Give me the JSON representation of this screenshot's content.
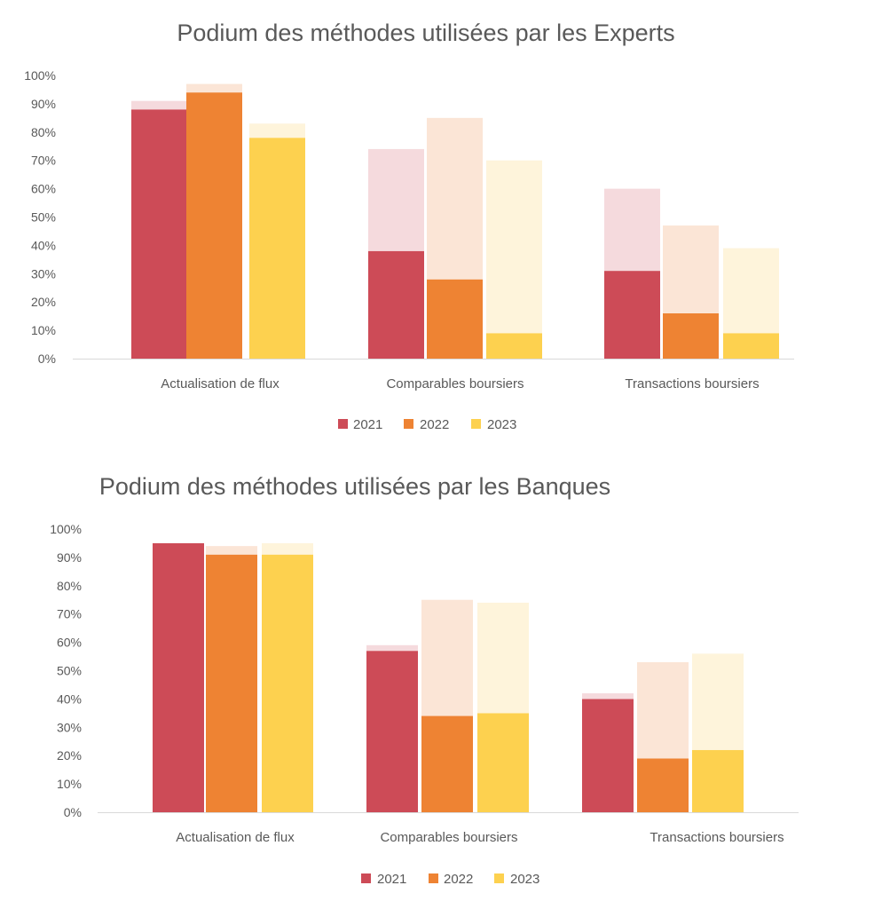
{
  "chart_data": [
    {
      "type": "bar",
      "title": "Podium des méthodes utilisées par les Experts",
      "categories": [
        "Actualisation de flux",
        "Comparables boursiers",
        "Transactions boursiers"
      ],
      "y_ticks": [
        "0%",
        "10%",
        "20%",
        "30%",
        "40%",
        "50%",
        "60%",
        "70%",
        "80%",
        "90%",
        "100%"
      ],
      "ylim": [
        0,
        100
      ],
      "stacked": true,
      "series": [
        {
          "name": "2021",
          "color": "#CD4B57",
          "light_color": "#F5DADD",
          "primary": [
            88,
            38,
            31
          ],
          "secondary": [
            3,
            36,
            29
          ]
        },
        {
          "name": "2022",
          "color": "#EE8333",
          "light_color": "#FBE5D6",
          "primary": [
            94,
            28,
            16
          ],
          "secondary": [
            3,
            57,
            31
          ]
        },
        {
          "name": "2023",
          "color": "#FDD14F",
          "light_color": "#FEF4DB",
          "primary": [
            78,
            9,
            9
          ],
          "secondary": [
            5,
            61,
            30
          ]
        }
      ],
      "legend": "bottom"
    },
    {
      "type": "bar",
      "title": "Podium des méthodes utilisées par les Banques",
      "categories": [
        "Actualisation de flux",
        "Comparables boursiers",
        "Transactions boursiers"
      ],
      "y_ticks": [
        "0%",
        "10%",
        "20%",
        "30%",
        "40%",
        "50%",
        "60%",
        "70%",
        "80%",
        "90%",
        "100%"
      ],
      "ylim": [
        0,
        100
      ],
      "stacked": true,
      "series": [
        {
          "name": "2021",
          "color": "#CD4B57",
          "light_color": "#F5DADD",
          "primary": [
            95,
            57,
            40
          ],
          "secondary": [
            0,
            2,
            2
          ]
        },
        {
          "name": "2022",
          "color": "#EE8333",
          "light_color": "#FBE5D6",
          "primary": [
            91,
            34,
            19
          ],
          "secondary": [
            3,
            41,
            34
          ]
        },
        {
          "name": "2023",
          "color": "#FDD14F",
          "light_color": "#FEF4DB",
          "primary": [
            91,
            35,
            22
          ],
          "secondary": [
            4,
            39,
            34
          ]
        }
      ],
      "legend": "bottom"
    }
  ]
}
